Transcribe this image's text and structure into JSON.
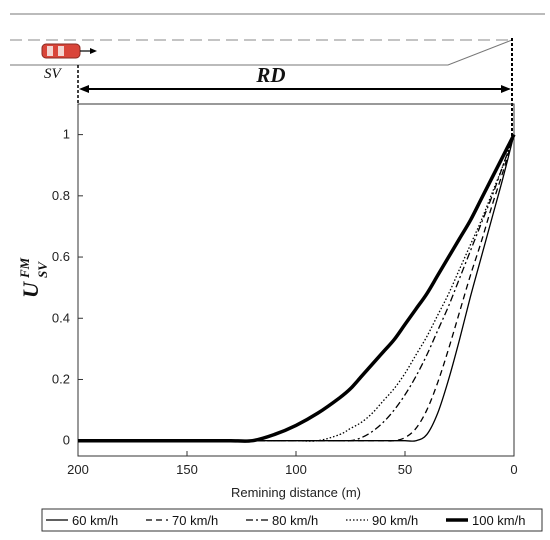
{
  "scene": {
    "sv_label": "SV",
    "rd_label": "RD",
    "vehicle_color": "#d9453a"
  },
  "chart_data": {
    "type": "line",
    "xlabel": "Remining distance (m)",
    "ylabel": "U",
    "ylabel_superscript": "FM",
    "ylabel_subscript": "SV",
    "xlim": [
      200,
      0
    ],
    "ylim": [
      -0.05,
      1.1
    ],
    "xticks": [
      200,
      150,
      100,
      50,
      0
    ],
    "yticks": [
      0,
      0.2,
      0.4,
      0.6,
      0.8,
      1
    ],
    "grid": false,
    "legend_position": "bottom",
    "x": [
      200,
      190,
      180,
      170,
      160,
      150,
      140,
      130,
      120,
      110,
      100,
      90,
      80,
      75,
      70,
      65,
      60,
      55,
      50,
      45,
      40,
      35,
      30,
      25,
      20,
      15,
      10,
      5,
      0
    ],
    "series": [
      {
        "name": "60 km/h",
        "style": "solid",
        "values": [
          0,
          0,
          0,
          0,
          0,
          0,
          0,
          0,
          0,
          0,
          0,
          0,
          0,
          0,
          0,
          0,
          0,
          0,
          0,
          0,
          0.02,
          0.09,
          0.2,
          0.33,
          0.47,
          0.6,
          0.73,
          0.86,
          1
        ]
      },
      {
        "name": "70 km/h",
        "style": "dashed",
        "values": [
          0,
          0,
          0,
          0,
          0,
          0,
          0,
          0,
          0,
          0,
          0,
          0,
          0,
          0,
          0,
          0,
          0,
          0,
          0.01,
          0.04,
          0.1,
          0.19,
          0.3,
          0.42,
          0.54,
          0.65,
          0.77,
          0.88,
          1
        ]
      },
      {
        "name": "80 km/h",
        "style": "dashdot",
        "values": [
          0,
          0,
          0,
          0,
          0,
          0,
          0,
          0,
          0,
          0,
          0,
          0,
          0,
          0,
          0.01,
          0.03,
          0.06,
          0.1,
          0.15,
          0.21,
          0.28,
          0.36,
          0.44,
          0.53,
          0.62,
          0.71,
          0.8,
          0.9,
          1
        ]
      },
      {
        "name": "90 km/h",
        "style": "dotted",
        "values": [
          0,
          0,
          0,
          0,
          0,
          0,
          0,
          0,
          0,
          0,
          0,
          0,
          0.02,
          0.04,
          0.06,
          0.09,
          0.13,
          0.17,
          0.22,
          0.28,
          0.34,
          0.41,
          0.48,
          0.56,
          0.64,
          0.72,
          0.81,
          0.9,
          1
        ]
      },
      {
        "name": "100 km/h",
        "style": "thick",
        "values": [
          0,
          0,
          0,
          0,
          0,
          0,
          0,
          0,
          0,
          0.02,
          0.05,
          0.09,
          0.14,
          0.17,
          0.21,
          0.25,
          0.29,
          0.33,
          0.38,
          0.43,
          0.48,
          0.54,
          0.6,
          0.66,
          0.72,
          0.79,
          0.86,
          0.93,
          1
        ]
      }
    ]
  }
}
